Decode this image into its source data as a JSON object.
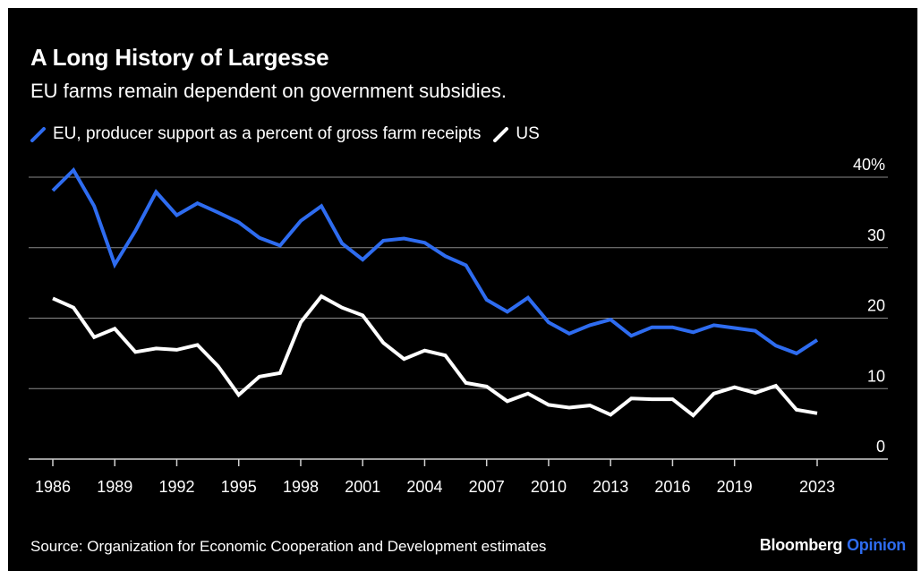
{
  "title": "A Long History of Largesse",
  "subtitle": "EU farms remain dependent on government subsidies.",
  "legend": [
    {
      "label": "EU, producer support as a percent of gross farm receipts",
      "color": "#2e6cf0"
    },
    {
      "label": "US",
      "color": "#ffffff"
    }
  ],
  "source": "Source: Organization for Economic Cooperation and Development estimates",
  "brand": {
    "main": "Bloomberg",
    "accent": "Opinion"
  },
  "colors": {
    "background": "#000000",
    "eu": "#2e6cf0",
    "us": "#ffffff",
    "grid": "#8a8a8a"
  },
  "chart_data": {
    "type": "line",
    "title": "A Long History of Largesse",
    "subtitle": "EU farms remain dependent on government subsidies.",
    "x": [
      1986,
      1987,
      1988,
      1989,
      1990,
      1991,
      1992,
      1993,
      1994,
      1995,
      1996,
      1997,
      1998,
      1999,
      2000,
      2001,
      2002,
      2003,
      2004,
      2005,
      2006,
      2007,
      2008,
      2009,
      2010,
      2011,
      2012,
      2013,
      2014,
      2015,
      2016,
      2017,
      2018,
      2019,
      2020,
      2021,
      2022,
      2023
    ],
    "x_ticks": [
      1986,
      1989,
      1992,
      1995,
      1998,
      2001,
      2004,
      2007,
      2010,
      2013,
      2016,
      2019,
      2023
    ],
    "y_ticks": [
      0,
      10,
      20,
      30,
      40
    ],
    "y_tick_labels": [
      "0",
      "10",
      "20",
      "30",
      "40%"
    ],
    "ylim": [
      0,
      40
    ],
    "grid": true,
    "legend_position": "top-left",
    "series": [
      {
        "name": "EU, producer support as a percent of gross farm receipts",
        "values": [
          38.1,
          41.0,
          35.9,
          27.6,
          32.4,
          37.9,
          34.6,
          36.3,
          35.0,
          33.6,
          31.4,
          30.3,
          33.8,
          35.9,
          30.6,
          28.3,
          31.0,
          31.3,
          30.7,
          28.8,
          27.5,
          22.6,
          20.9,
          22.9,
          19.4,
          17.8,
          19.0,
          19.8,
          17.5,
          18.7,
          18.7,
          18.0,
          19.0,
          18.6,
          18.2,
          16.1,
          15.0,
          16.9
        ]
      },
      {
        "name": "US",
        "values": [
          22.8,
          21.5,
          17.3,
          18.5,
          15.2,
          15.7,
          15.5,
          16.2,
          13.2,
          9.1,
          11.7,
          12.2,
          19.4,
          23.1,
          21.5,
          20.4,
          16.5,
          14.2,
          15.4,
          14.7,
          10.8,
          10.3,
          8.2,
          9.3,
          7.7,
          7.3,
          7.6,
          6.3,
          8.6,
          8.5,
          8.5,
          6.2,
          9.3,
          10.2,
          9.4,
          10.4,
          7.0,
          6.5
        ]
      }
    ]
  }
}
